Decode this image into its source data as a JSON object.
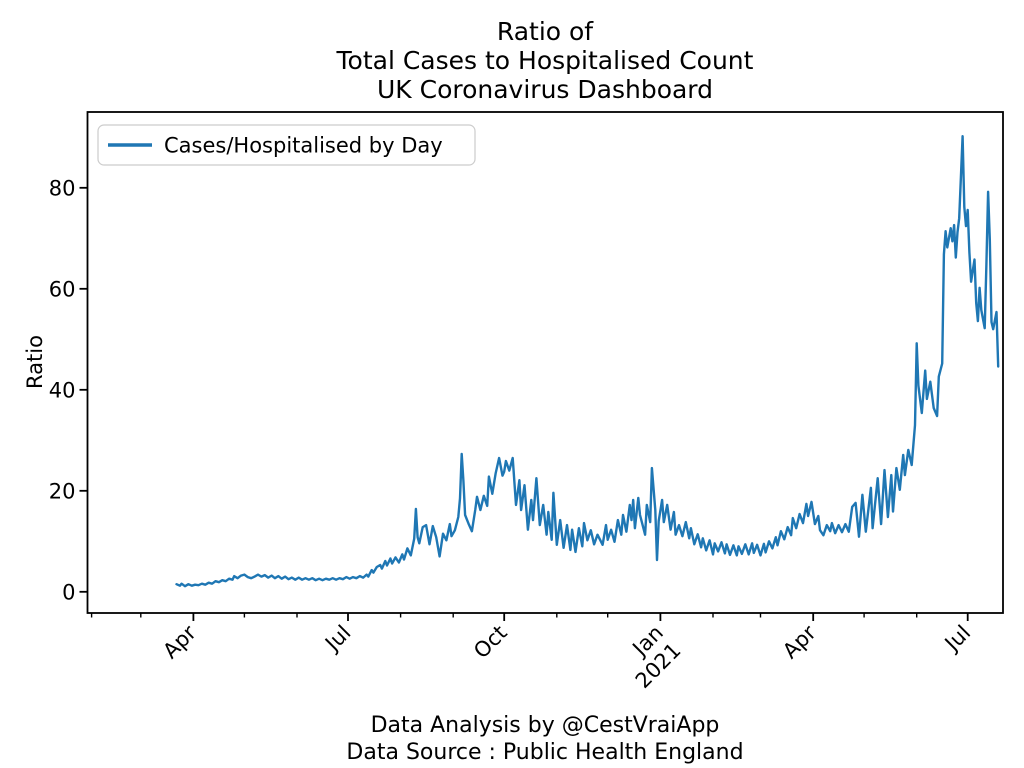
{
  "figure": {
    "title": {
      "line1": "Ratio of",
      "line2": "Total Cases to Hospitalised Count",
      "line3": "UK Coronavirus Dashboard"
    },
    "ylabel": "Ratio",
    "legend": {
      "label": "Cases/Hospitalised by Day"
    },
    "footer": {
      "line1": "Data Analysis by @CestVraiApp",
      "line2": "Data Source : Public Health England"
    },
    "colors": {
      "line": "#1f77b4",
      "text": "#000000",
      "spine": "#000000",
      "legend_border": "#cccccc",
      "background": "#ffffff"
    }
  },
  "chart_data": {
    "type": "line",
    "title": "Ratio of | Total Cases to Hospitalised Count | UK Coronavirus Dashboard",
    "xlabel": "",
    "ylabel": "Ratio",
    "legend_entries": [
      "Cases/Hospitalised by Day"
    ],
    "legend_position": "upper left",
    "grid": false,
    "line_color": "#1f77b4",
    "x_unit": "days, day 0 = first plotted day (~22 Mar 2020)",
    "xlim_days": [
      -52.4,
      486.8
    ],
    "ylim": [
      -4.2,
      95
    ],
    "y_ticks": [
      0,
      20,
      40,
      60,
      80
    ],
    "x_ticks_major": [
      {
        "day": 10,
        "label": "Apr"
      },
      {
        "day": 101,
        "label": "Jul"
      },
      {
        "day": 193,
        "label": "Oct"
      },
      {
        "day": 285,
        "label": "Jan",
        "label2": "2021"
      },
      {
        "day": 375,
        "label": "Apr"
      },
      {
        "day": 466,
        "label": "Jul"
      }
    ],
    "x_ticks_minor_days": [
      -50,
      -21,
      40,
      71,
      132,
      163,
      224,
      254,
      316,
      344,
      405,
      436
    ],
    "points": [
      [
        0,
        1.5
      ],
      [
        2,
        1.2
      ],
      [
        3,
        1.6
      ],
      [
        5,
        1.1
      ],
      [
        7,
        1.5
      ],
      [
        9,
        1.2
      ],
      [
        11,
        1.4
      ],
      [
        13,
        1.3
      ],
      [
        15,
        1.6
      ],
      [
        17,
        1.4
      ],
      [
        19,
        1.8
      ],
      [
        21,
        1.6
      ],
      [
        23,
        2.1
      ],
      [
        25,
        1.9
      ],
      [
        27,
        2.3
      ],
      [
        29,
        2.1
      ],
      [
        31,
        2.6
      ],
      [
        33,
        2.4
      ],
      [
        34,
        3.1
      ],
      [
        36,
        2.7
      ],
      [
        38,
        3.2
      ],
      [
        40,
        3.4
      ],
      [
        42,
        2.9
      ],
      [
        44,
        2.7
      ],
      [
        46,
        3.0
      ],
      [
        48,
        3.4
      ],
      [
        50,
        3.0
      ],
      [
        52,
        3.3
      ],
      [
        54,
        2.8
      ],
      [
        56,
        3.2
      ],
      [
        58,
        2.7
      ],
      [
        60,
        3.1
      ],
      [
        62,
        2.6
      ],
      [
        64,
        3.0
      ],
      [
        66,
        2.5
      ],
      [
        68,
        2.8
      ],
      [
        70,
        2.4
      ],
      [
        72,
        2.8
      ],
      [
        74,
        2.4
      ],
      [
        76,
        2.7
      ],
      [
        78,
        2.4
      ],
      [
        80,
        2.7
      ],
      [
        82,
        2.3
      ],
      [
        84,
        2.6
      ],
      [
        86,
        2.3
      ],
      [
        88,
        2.6
      ],
      [
        90,
        2.4
      ],
      [
        92,
        2.7
      ],
      [
        94,
        2.4
      ],
      [
        96,
        2.7
      ],
      [
        98,
        2.5
      ],
      [
        100,
        2.9
      ],
      [
        102,
        2.6
      ],
      [
        104,
        2.9
      ],
      [
        106,
        2.7
      ],
      [
        108,
        3.1
      ],
      [
        110,
        2.8
      ],
      [
        112,
        3.4
      ],
      [
        113,
        3.0
      ],
      [
        115,
        4.3
      ],
      [
        116,
        3.8
      ],
      [
        118,
        4.9
      ],
      [
        120,
        5.3
      ],
      [
        121,
        4.6
      ],
      [
        123,
        6.1
      ],
      [
        124,
        5.2
      ],
      [
        126,
        6.6
      ],
      [
        127,
        5.6
      ],
      [
        129,
        6.8
      ],
      [
        131,
        5.8
      ],
      [
        133,
        7.4
      ],
      [
        134,
        6.4
      ],
      [
        136,
        8.6
      ],
      [
        138,
        7.2
      ],
      [
        140,
        10.5
      ],
      [
        141,
        16.4
      ],
      [
        142,
        10.8
      ],
      [
        143,
        9.6
      ],
      [
        145,
        12.8
      ],
      [
        147,
        13.2
      ],
      [
        149,
        9.4
      ],
      [
        151,
        13.0
      ],
      [
        153,
        10.8
      ],
      [
        155,
        7.0
      ],
      [
        157,
        11.5
      ],
      [
        159,
        10.2
      ],
      [
        161,
        13.4
      ],
      [
        162,
        11.0
      ],
      [
        164,
        12.2
      ],
      [
        166,
        14.8
      ],
      [
        167,
        18.5
      ],
      [
        168,
        27.3
      ],
      [
        169,
        22.0
      ],
      [
        170,
        15.2
      ],
      [
        172,
        13.5
      ],
      [
        174,
        12.0
      ],
      [
        176,
        16.3
      ],
      [
        177,
        18.8
      ],
      [
        179,
        16.2
      ],
      [
        181,
        19.0
      ],
      [
        183,
        17.0
      ],
      [
        184,
        22.8
      ],
      [
        186,
        19.4
      ],
      [
        188,
        23.5
      ],
      [
        190,
        26.5
      ],
      [
        192,
        23.0
      ],
      [
        193,
        23.8
      ],
      [
        194,
        25.9
      ],
      [
        196,
        24.0
      ],
      [
        198,
        26.5
      ],
      [
        200,
        17.2
      ],
      [
        202,
        22.1
      ],
      [
        203,
        16.2
      ],
      [
        205,
        21.1
      ],
      [
        207,
        12.3
      ],
      [
        209,
        18.2
      ],
      [
        210,
        14.2
      ],
      [
        212,
        22.5
      ],
      [
        214,
        13.2
      ],
      [
        216,
        17.2
      ],
      [
        218,
        11.3
      ],
      [
        219,
        15.8
      ],
      [
        221,
        10.3
      ],
      [
        222,
        19.6
      ],
      [
        224,
        9.3
      ],
      [
        226,
        14.2
      ],
      [
        228,
        8.7
      ],
      [
        230,
        13.2
      ],
      [
        232,
        8.3
      ],
      [
        233,
        12.3
      ],
      [
        235,
        7.9
      ],
      [
        237,
        12.6
      ],
      [
        239,
        9.0
      ],
      [
        240,
        13.6
      ],
      [
        242,
        10.2
      ],
      [
        244,
        12.2
      ],
      [
        246,
        9.4
      ],
      [
        248,
        11.3
      ],
      [
        251,
        9.3
      ],
      [
        253,
        13.2
      ],
      [
        254,
        10.3
      ],
      [
        256,
        12.3
      ],
      [
        258,
        9.9
      ],
      [
        260,
        14.2
      ],
      [
        262,
        11.3
      ],
      [
        263,
        15.2
      ],
      [
        265,
        11.9
      ],
      [
        267,
        17.2
      ],
      [
        268,
        14.2
      ],
      [
        269,
        18.2
      ],
      [
        270,
        12.6
      ],
      [
        272,
        18.6
      ],
      [
        273,
        15.2
      ],
      [
        276,
        11.3
      ],
      [
        277,
        17.2
      ],
      [
        279,
        13.8
      ],
      [
        280,
        24.5
      ],
      [
        282,
        16.2
      ],
      [
        283,
        6.3
      ],
      [
        284,
        14.0
      ],
      [
        286,
        18.2
      ],
      [
        287,
        13.8
      ],
      [
        289,
        17.2
      ],
      [
        291,
        12.3
      ],
      [
        293,
        15.8
      ],
      [
        294,
        11.3
      ],
      [
        296,
        13.2
      ],
      [
        298,
        11.0
      ],
      [
        300,
        13.8
      ],
      [
        302,
        10.6
      ],
      [
        303,
        12.6
      ],
      [
        305,
        9.4
      ],
      [
        307,
        11.4
      ],
      [
        309,
        8.8
      ],
      [
        310,
        10.6
      ],
      [
        312,
        8.2
      ],
      [
        314,
        10.2
      ],
      [
        316,
        7.4
      ],
      [
        317,
        9.6
      ],
      [
        319,
        8.0
      ],
      [
        321,
        9.8
      ],
      [
        323,
        7.6
      ],
      [
        324,
        9.4
      ],
      [
        326,
        7.3
      ],
      [
        328,
        9.2
      ],
      [
        330,
        7.2
      ],
      [
        331,
        9.0
      ],
      [
        333,
        7.5
      ],
      [
        335,
        9.4
      ],
      [
        337,
        7.4
      ],
      [
        339,
        9.6
      ],
      [
        340,
        7.7
      ],
      [
        342,
        9.3
      ],
      [
        344,
        7.2
      ],
      [
        346,
        9.5
      ],
      [
        347,
        7.8
      ],
      [
        349,
        10.0
      ],
      [
        351,
        8.6
      ],
      [
        353,
        10.8
      ],
      [
        354,
        9.2
      ],
      [
        356,
        12.0
      ],
      [
        358,
        10.4
      ],
      [
        360,
        12.8
      ],
      [
        362,
        11.2
      ],
      [
        363,
        14.6
      ],
      [
        365,
        12.6
      ],
      [
        367,
        15.4
      ],
      [
        369,
        13.6
      ],
      [
        371,
        17.4
      ],
      [
        372,
        15.0
      ],
      [
        374,
        17.8
      ],
      [
        376,
        13.4
      ],
      [
        378,
        15.0
      ],
      [
        379,
        12.2
      ],
      [
        381,
        11.2
      ],
      [
        383,
        13.2
      ],
      [
        385,
        12.0
      ],
      [
        386,
        13.6
      ],
      [
        388,
        11.6
      ],
      [
        390,
        13.2
      ],
      [
        392,
        11.8
      ],
      [
        394,
        13.4
      ],
      [
        396,
        11.9
      ],
      [
        398,
        16.8
      ],
      [
        400,
        17.6
      ],
      [
        402,
        10.9
      ],
      [
        404,
        19.2
      ],
      [
        406,
        11.9
      ],
      [
        409,
        20.6
      ],
      [
        410,
        12.6
      ],
      [
        413,
        22.5
      ],
      [
        415,
        13.4
      ],
      [
        417,
        24.1
      ],
      [
        419,
        14.8
      ],
      [
        421,
        23.1
      ],
      [
        422,
        15.9
      ],
      [
        424,
        24.5
      ],
      [
        426,
        20.2
      ],
      [
        428,
        27.1
      ],
      [
        429,
        23.1
      ],
      [
        431,
        28.1
      ],
      [
        433,
        25.1
      ],
      [
        435,
        33.0
      ],
      [
        436,
        49.2
      ],
      [
        437,
        40.8
      ],
      [
        439,
        35.4
      ],
      [
        441,
        43.8
      ],
      [
        442,
        38.2
      ],
      [
        444,
        41.6
      ],
      [
        446,
        36.4
      ],
      [
        448,
        34.8
      ],
      [
        449,
        42.6
      ],
      [
        451,
        45.2
      ],
      [
        452,
        66.8
      ],
      [
        453,
        71.4
      ],
      [
        454,
        68.2
      ],
      [
        456,
        72.0
      ],
      [
        457,
        69.4
      ],
      [
        458,
        72.6
      ],
      [
        459,
        66.2
      ],
      [
        460,
        71.2
      ],
      [
        461,
        74.0
      ],
      [
        463,
        90.2
      ],
      [
        464,
        76.2
      ],
      [
        465,
        72.4
      ],
      [
        466,
        75.6
      ],
      [
        467,
        67.2
      ],
      [
        468,
        61.4
      ],
      [
        470,
        65.8
      ],
      [
        471,
        57.2
      ],
      [
        472,
        53.6
      ],
      [
        473,
        60.2
      ],
      [
        474,
        55.8
      ],
      [
        476,
        52.2
      ],
      [
        477,
        64.8
      ],
      [
        478,
        79.2
      ],
      [
        479,
        69.8
      ],
      [
        480,
        53.4
      ],
      [
        481,
        52.0
      ],
      [
        483,
        55.4
      ],
      [
        484,
        44.6
      ]
    ],
    "annotations": [
      "Data Analysis by @CestVraiApp",
      "Data Source : Public Health England"
    ]
  }
}
